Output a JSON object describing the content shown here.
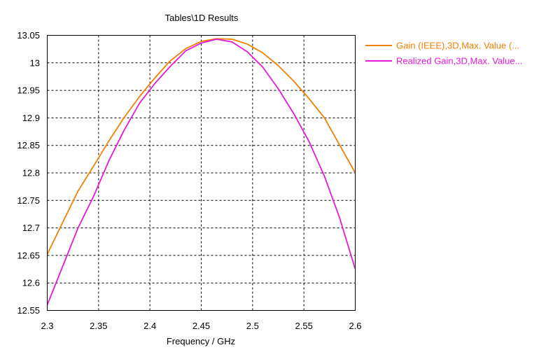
{
  "window": {
    "title": "Tables\\1D Results"
  },
  "chart_data": {
    "type": "line",
    "title": "Tables\\1D Results",
    "xlabel": "Frequency / GHz",
    "ylabel": "",
    "xlim": [
      2.3,
      2.6
    ],
    "ylim": [
      12.55,
      13.05
    ],
    "xticks": [
      "2.3",
      "2.35",
      "2.4",
      "2.45",
      "2.5",
      "2.55",
      "2.6"
    ],
    "yticks": [
      "12.55",
      "12.6",
      "12.65",
      "12.7",
      "12.75",
      "12.8",
      "12.85",
      "12.9",
      "12.95",
      "13",
      "13.05"
    ],
    "grid": true,
    "legend_position": "right",
    "series": [
      {
        "name": "Gain (IEEE),3D,Max. Value (...",
        "color": "#f08000",
        "x": [
          2.3,
          2.315,
          2.33,
          2.345,
          2.36,
          2.375,
          2.39,
          2.405,
          2.42,
          2.435,
          2.45,
          2.465,
          2.48,
          2.495,
          2.51,
          2.525,
          2.54,
          2.555,
          2.57,
          2.585,
          2.6
        ],
        "y": [
          12.652,
          12.71,
          12.767,
          12.812,
          12.858,
          12.901,
          12.939,
          12.973,
          13.004,
          13.026,
          13.039,
          13.044,
          13.043,
          13.034,
          13.018,
          12.995,
          12.967,
          12.935,
          12.9,
          12.85,
          12.8
        ]
      },
      {
        "name": "Realized Gain,3D,Max. Value...",
        "color": "#e619d6",
        "x": [
          2.3,
          2.315,
          2.33,
          2.345,
          2.36,
          2.375,
          2.39,
          2.405,
          2.42,
          2.435,
          2.45,
          2.465,
          2.48,
          2.495,
          2.51,
          2.525,
          2.54,
          2.555,
          2.57,
          2.585,
          2.6
        ],
        "y": [
          12.56,
          12.63,
          12.7,
          12.757,
          12.822,
          12.878,
          12.927,
          12.963,
          12.994,
          13.022,
          13.036,
          13.043,
          13.038,
          13.02,
          12.992,
          12.953,
          12.908,
          12.857,
          12.794,
          12.717,
          12.625
        ]
      }
    ]
  }
}
